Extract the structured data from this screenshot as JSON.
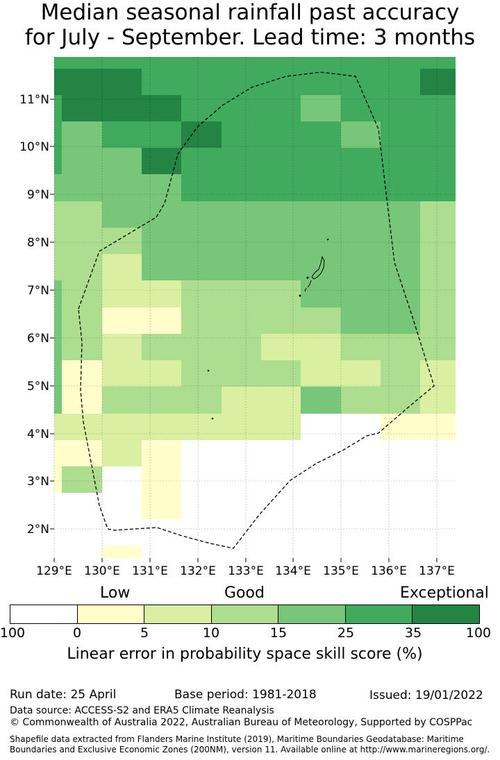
{
  "title_line1": "Median seasonal rainfall past accuracy",
  "title_line2": "for July - September. Lead time: 3 months",
  "map": {
    "lon_labels": [
      "129°E",
      "130°E",
      "131°E",
      "132°E",
      "133°E",
      "134°E",
      "135°E",
      "136°E",
      "137°E"
    ],
    "lat_labels": [
      "11°N",
      "10°N",
      "9°N",
      "8°N",
      "7°N",
      "6°N",
      "5°N",
      "4°N",
      "3°N",
      "2°N"
    ],
    "colors": {
      "c1": "#ffffcc",
      "c2": "#d9f0a3",
      "c3": "#addd8e",
      "c4": "#78c679",
      "c5": "#41ab5d",
      "c6": "#238443"
    }
  },
  "colorbar": {
    "category_low": "Low",
    "category_good": "Good",
    "category_exceptional": "Exceptional",
    "boundaries": [
      "100",
      "0",
      "5",
      "10",
      "15",
      "25",
      "35",
      "100"
    ],
    "colors": [
      "#ffffff",
      "#ffffcc",
      "#d9f0a3",
      "#addd8e",
      "#78c679",
      "#41ab5d",
      "#238443"
    ],
    "label": "Linear error in probability space skill score (%)"
  },
  "footer": {
    "run_date": "Run date: 25 April",
    "base_period": "Base period: 1981-2018",
    "issued": "Issued: 19/01/2022",
    "data_source": "Data source: ACCESS-S2 and ERA5 Climate Reanalysis",
    "copyright": "© Commonwealth of Australia 2022, Australian Bureau of Meteorology, Supported by COSPPac",
    "shapefile_line1": "Shapefile data extracted from Flanders Marine Institute (2019), Maritime Boundaries Geodatabase: Maritime",
    "shapefile_line2": "Boundaries and Exclusive Economic Zones (200NM), version 11. Available online at http://www.marineregions.org/."
  }
}
